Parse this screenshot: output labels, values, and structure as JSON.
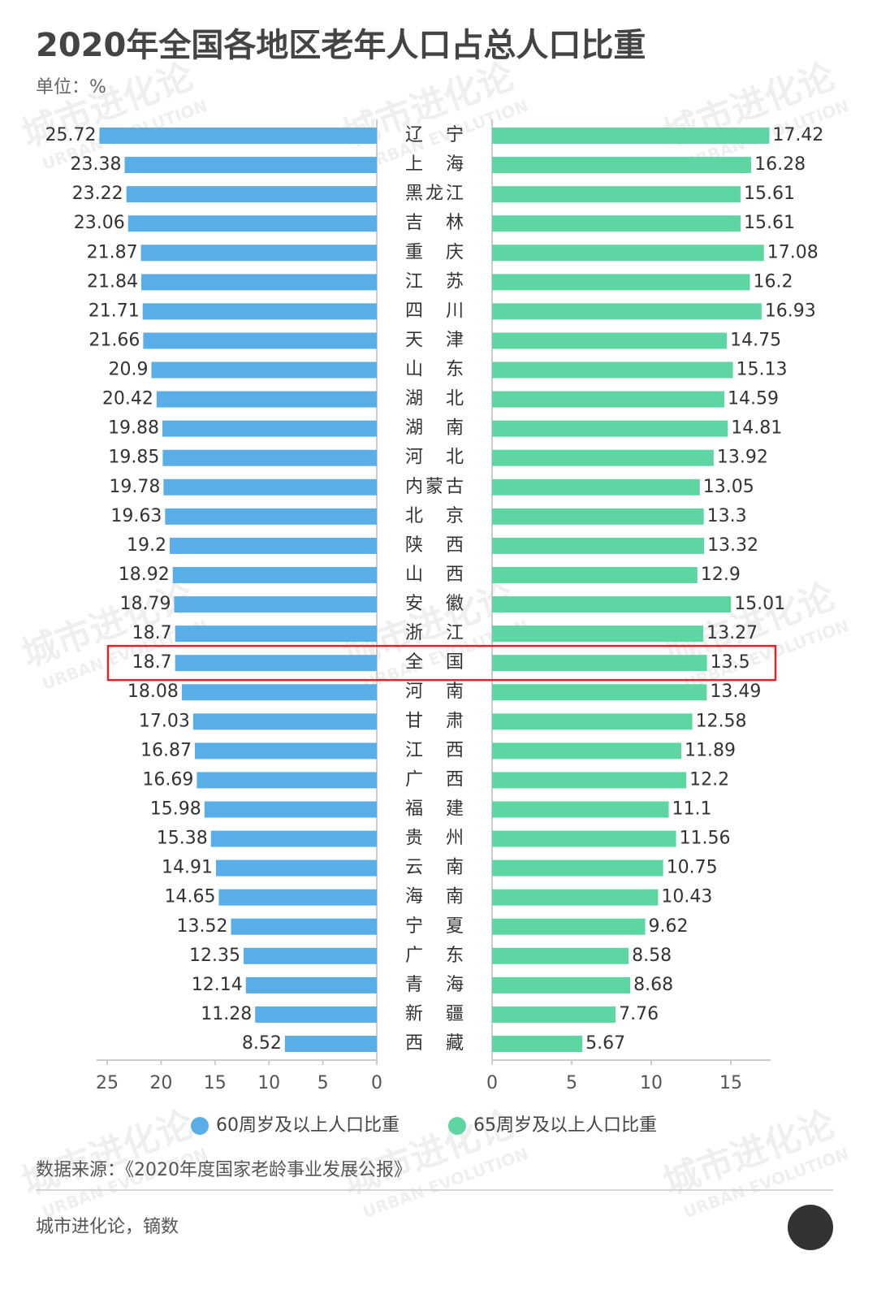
{
  "chart_data": {
    "type": "bar",
    "orientation": "horizontal",
    "title": "2020年全国各地区老年人口占总人口比重",
    "unit_label": "单位：%",
    "categories": [
      "辽宁",
      "上海",
      "黑龙江",
      "吉林",
      "重庆",
      "江苏",
      "四川",
      "天津",
      "山东",
      "湖北",
      "湖南",
      "河北",
      "内蒙古",
      "北京",
      "陕西",
      "山西",
      "安徽",
      "浙江",
      "全国",
      "河南",
      "甘肃",
      "江西",
      "广西",
      "福建",
      "贵州",
      "云南",
      "海南",
      "宁夏",
      "广东",
      "青海",
      "新疆",
      "西藏"
    ],
    "series": [
      {
        "name": "60周岁及以上人口比重",
        "color": "#5aaee8",
        "side": "left",
        "values": [
          25.72,
          23.38,
          23.22,
          23.06,
          21.87,
          21.84,
          21.71,
          21.66,
          20.9,
          20.42,
          19.88,
          19.85,
          19.78,
          19.63,
          19.2,
          18.92,
          18.79,
          18.7,
          18.7,
          18.08,
          17.03,
          16.87,
          16.69,
          15.98,
          15.38,
          14.91,
          14.65,
          13.52,
          12.35,
          12.14,
          11.28,
          8.52
        ],
        "xlim": [
          0,
          26
        ],
        "xticks": [
          25,
          20,
          15,
          10,
          5,
          0
        ]
      },
      {
        "name": "65周岁及以上人口比重",
        "color": "#5dd6a3",
        "side": "right",
        "values": [
          17.42,
          16.28,
          15.61,
          15.61,
          17.08,
          16.2,
          16.93,
          14.75,
          15.13,
          14.59,
          14.81,
          13.92,
          13.05,
          13.3,
          13.32,
          12.9,
          15.01,
          13.27,
          13.5,
          13.49,
          12.58,
          11.89,
          12.2,
          11.1,
          11.56,
          10.75,
          10.43,
          9.62,
          8.58,
          8.68,
          7.76,
          5.67
        ],
        "xlim": [
          0,
          17.5
        ],
        "xticks": [
          0,
          5,
          10,
          15
        ]
      }
    ],
    "highlight": "全国",
    "highlight_color": "#d9262b",
    "source": "数据来源：《2020年度国家老龄事业发展公报》",
    "credit": "城市进化论，镝数",
    "watermark": "城市进化论",
    "watermark_sub": "URBAN EVOLUTION"
  }
}
